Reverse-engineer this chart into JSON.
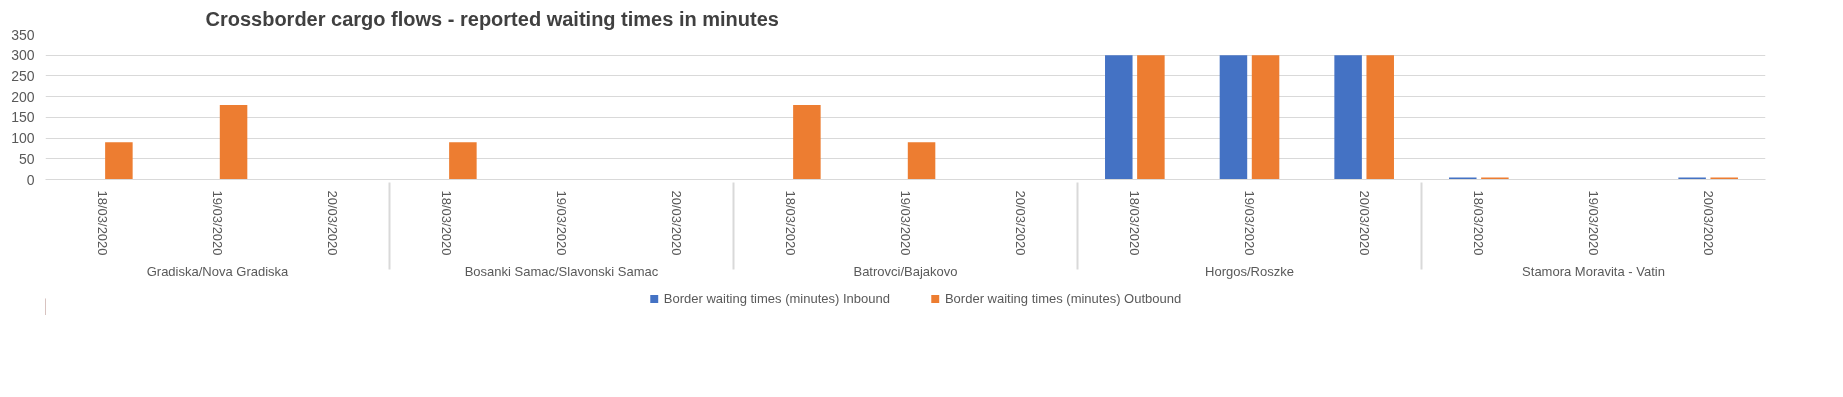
{
  "chart_data": {
    "type": "bar",
    "title": "Crossborder cargo flows - reported waiting times in minutes",
    "categories": [
      "18/03/2020",
      "19/03/2020",
      "20/03/2020",
      "18/03/2020",
      "19/03/2020",
      "20/03/2020",
      "18/03/2020",
      "19/03/2020",
      "20/03/2020",
      "18/03/2020",
      "19/03/2020",
      "20/03/2020",
      "18/03/2020",
      "19/03/2020",
      "20/03/2020"
    ],
    "annotations": [
      "Gradiska/Nova Gradiska",
      "Bosanki Samac/Slavonski Samac",
      "Batrovci/Bajakovo",
      "Horgos/Roszke",
      "Stamora Moravita - Vatin"
    ],
    "series": [
      {
        "name": "Border waiting times (minutes) Inbound",
        "color": "#4472c4",
        "values": [
          0,
          0,
          0,
          0,
          0,
          0,
          0,
          0,
          0,
          300,
          300,
          300,
          5,
          0,
          5
        ]
      },
      {
        "name": "Border waiting times (minutes) Outbound",
        "color": "#ed7d31",
        "values": [
          90,
          180,
          0,
          90,
          0,
          0,
          180,
          90,
          0,
          300,
          300,
          300,
          5,
          0,
          5
        ]
      }
    ],
    "ylim": [
      0,
      350
    ],
    "yticks": [
      0,
      50,
      100,
      150,
      200,
      250,
      300,
      350
    ],
    "grid": "y",
    "legend": "bottom"
  }
}
